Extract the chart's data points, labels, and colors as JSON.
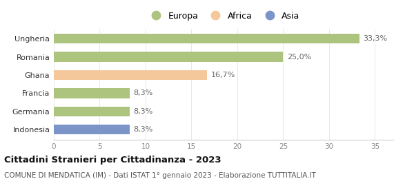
{
  "categories": [
    "Indonesia",
    "Germania",
    "Francia",
    "Ghana",
    "Romania",
    "Ungheria"
  ],
  "values": [
    8.3,
    8.3,
    8.3,
    16.7,
    25.0,
    33.3
  ],
  "labels": [
    "8,3%",
    "8,3%",
    "8,3%",
    "16,7%",
    "25,0%",
    "33,3%"
  ],
  "bar_colors": [
    "#7b95c9",
    "#adc47e",
    "#adc47e",
    "#f5c89c",
    "#adc47e",
    "#adc47e"
  ],
  "legend_items": [
    {
      "label": "Europa",
      "color": "#adc47e"
    },
    {
      "label": "Africa",
      "color": "#f5c89c"
    },
    {
      "label": "Asia",
      "color": "#7b95c9"
    }
  ],
  "xlim": [
    0,
    37
  ],
  "xticks": [
    0,
    5,
    10,
    15,
    20,
    25,
    30,
    35
  ],
  "title": "Cittadini Stranieri per Cittadinanza - 2023",
  "subtitle": "COMUNE DI MENDATICA (IM) - Dati ISTAT 1° gennaio 2023 - Elaborazione TUTTITALIA.IT",
  "title_fontsize": 9.5,
  "subtitle_fontsize": 7.5,
  "background_color": "#ffffff",
  "bar_height": 0.55,
  "label_color": "#666666",
  "tick_color": "#888888",
  "grid_color": "#e8e8e8"
}
